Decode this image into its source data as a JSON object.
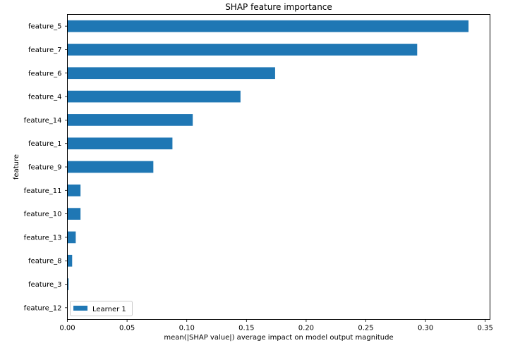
{
  "chart_data": {
    "type": "bar",
    "orientation": "horizontal",
    "title": "SHAP feature importance",
    "xlabel": "mean(|SHAP value|) average impact on model output magnitude",
    "ylabel": "feature",
    "categories": [
      "feature_5",
      "feature_7",
      "feature_6",
      "feature_4",
      "feature_14",
      "feature_1",
      "feature_9",
      "feature_11",
      "feature_10",
      "feature_13",
      "feature_8",
      "feature_3",
      "feature_12"
    ],
    "series": [
      {
        "name": "Learner 1",
        "values": [
          0.336,
          0.293,
          0.174,
          0.145,
          0.105,
          0.088,
          0.072,
          0.011,
          0.011,
          0.007,
          0.004,
          0.001,
          0.0
        ],
        "color": "#1f77b4"
      }
    ],
    "xlim": [
      0,
      0.354
    ],
    "xticks": [
      0,
      0.05,
      0.1,
      0.15,
      0.2,
      0.25,
      0.3,
      0.35
    ],
    "xtick_labels": [
      "0.00",
      "0.05",
      "0.10",
      "0.15",
      "0.20",
      "0.25",
      "0.30",
      "0.35"
    ],
    "grid": false,
    "legend_position": "bottom-left"
  }
}
